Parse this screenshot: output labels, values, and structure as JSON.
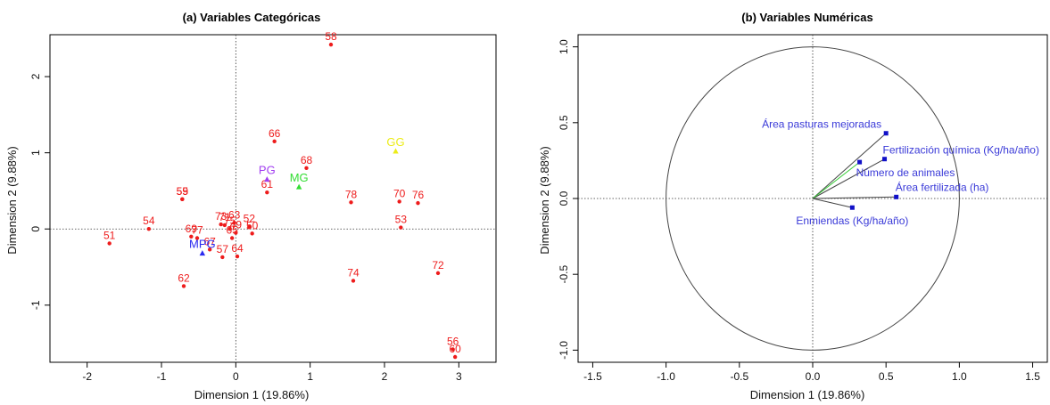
{
  "colors": {
    "points": "#ee1c1c",
    "mpg": "#2b2bf0",
    "pg": "#a23ff0",
    "mg": "#33dd33",
    "gg": "#ecec1a",
    "vector_line": "#444444",
    "vector_label": "#3a3ad8",
    "highlight_arrow": "#33cc33"
  },
  "chart_data": [
    {
      "type": "scatter",
      "title": "(a) Variables Categóricas",
      "xlabel": "Dimension 1 (19.86%)",
      "ylabel": "Dimension 2 (9.88%)",
      "xlim": [
        -2.5,
        3.5
      ],
      "ylim": [
        -1.75,
        2.55
      ],
      "xticks": [
        -2,
        -1,
        0,
        1,
        2,
        3
      ],
      "yticks": [
        -1,
        0,
        1,
        2
      ],
      "reference_lines": "dotted lines at x=0 and y=0",
      "grid": false,
      "individuals": [
        {
          "label": "51",
          "x": -1.7,
          "y": -0.19
        },
        {
          "label": "54",
          "x": -1.17,
          "y": 0.0
        },
        {
          "label": "59",
          "x": -0.72,
          "y": 0.39
        },
        {
          "label": "55",
          "x": -0.72,
          "y": 0.39
        },
        {
          "label": "69",
          "x": -0.6,
          "y": -0.1
        },
        {
          "label": "77",
          "x": -0.52,
          "y": -0.12
        },
        {
          "label": "67",
          "x": -0.35,
          "y": -0.27
        },
        {
          "label": "62",
          "x": -0.7,
          "y": -0.75
        },
        {
          "label": "73",
          "x": -0.2,
          "y": 0.06
        },
        {
          "label": "71",
          "x": -0.15,
          "y": 0.05
        },
        {
          "label": "75",
          "x": -0.08,
          "y": 0.0
        },
        {
          "label": "65",
          "x": -0.05,
          "y": -0.12
        },
        {
          "label": "57",
          "x": -0.18,
          "y": -0.37
        },
        {
          "label": "49",
          "x": 0.0,
          "y": -0.05
        },
        {
          "label": "63",
          "x": -0.02,
          "y": 0.08
        },
        {
          "label": "64",
          "x": 0.02,
          "y": -0.36
        },
        {
          "label": "52",
          "x": 0.18,
          "y": 0.03
        },
        {
          "label": "50",
          "x": 0.22,
          "y": -0.06
        },
        {
          "label": "61",
          "x": 0.42,
          "y": 0.48
        },
        {
          "label": "66",
          "x": 0.52,
          "y": 1.15
        },
        {
          "label": "68",
          "x": 0.95,
          "y": 0.8
        },
        {
          "label": "58",
          "x": 1.28,
          "y": 2.42
        },
        {
          "label": "78",
          "x": 1.55,
          "y": 0.35
        },
        {
          "label": "74",
          "x": 1.58,
          "y": -0.68
        },
        {
          "label": "70",
          "x": 2.2,
          "y": 0.36
        },
        {
          "label": "76",
          "x": 2.45,
          "y": 0.34
        },
        {
          "label": "53",
          "x": 2.22,
          "y": 0.02
        },
        {
          "label": "72",
          "x": 2.72,
          "y": -0.58
        },
        {
          "label": "56",
          "x": 2.92,
          "y": -1.58
        },
        {
          "label": "60",
          "x": 2.95,
          "y": -1.68
        }
      ],
      "categories": [
        {
          "label": "MPG",
          "x": -0.45,
          "y": -0.32,
          "color": "#2b2bf0"
        },
        {
          "label": "PG",
          "x": 0.42,
          "y": 0.65,
          "color": "#a23ff0"
        },
        {
          "label": "MG",
          "x": 0.85,
          "y": 0.55,
          "color": "#33dd33"
        },
        {
          "label": "GG",
          "x": 2.15,
          "y": 1.02,
          "color": "#ecec1a"
        }
      ]
    },
    {
      "type": "scatter",
      "title": "(b) Variables Numéricas",
      "xlabel": "Dimension 1 (19.86%)",
      "ylabel": "Dimension 2 (9.88%)",
      "xlim": [
        -1.6,
        1.6
      ],
      "ylim": [
        -1.08,
        1.08
      ],
      "xticks": [
        -1.5,
        -1.0,
        -0.5,
        0.0,
        0.5,
        1.0,
        1.5
      ],
      "yticks": [
        -1.0,
        -0.5,
        0.0,
        0.5,
        1.0
      ],
      "reference_lines": "dotted lines at x=0 and y=0",
      "unit_circle": true,
      "grid": false,
      "vectors": [
        {
          "label": "Área pasturas mejoradas",
          "x": 0.5,
          "y": 0.43
        },
        {
          "label": "Fertilización química (Kg/ha/año)",
          "x": 0.49,
          "y": 0.26
        },
        {
          "label": "Número de animales",
          "x": 0.32,
          "y": 0.24
        },
        {
          "label": "Área fertilizada (ha)",
          "x": 0.57,
          "y": 0.01
        },
        {
          "label": "Enmiendas (Kg/ha/año)",
          "x": 0.27,
          "y": -0.06
        }
      ]
    }
  ]
}
